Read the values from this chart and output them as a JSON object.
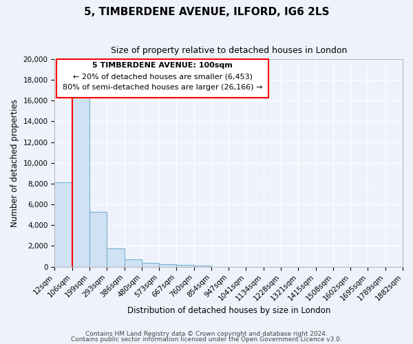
{
  "title": "5, TIMBERDENE AVENUE, ILFORD, IG6 2LS",
  "subtitle": "Size of property relative to detached houses in London",
  "xlabel": "Distribution of detached houses by size in London",
  "ylabel": "Number of detached properties",
  "bar_heights": [
    8100,
    16500,
    5300,
    1750,
    700,
    350,
    225,
    175,
    125,
    0,
    0,
    0,
    0,
    0,
    0,
    0,
    0,
    0,
    0,
    0
  ],
  "bin_labels": [
    "12sqm",
    "106sqm",
    "199sqm",
    "293sqm",
    "386sqm",
    "480sqm",
    "573sqm",
    "667sqm",
    "760sqm",
    "854sqm",
    "947sqm",
    "1041sqm",
    "1134sqm",
    "1228sqm",
    "1321sqm",
    "1415sqm",
    "1508sqm",
    "1602sqm",
    "1695sqm",
    "1789sqm",
    "1882sqm"
  ],
  "bar_color": "#cfe2f3",
  "bar_edge_color": "#7ab0d4",
  "red_line_x": 1,
  "annotation_text_line1": "5 TIMBERDENE AVENUE: 100sqm",
  "annotation_text_line2": "← 20% of detached houses are smaller (6,453)",
  "annotation_text_line3": "80% of semi-detached houses are larger (26,166) →",
  "footer_line1": "Contains HM Land Registry data © Crown copyright and database right 2024.",
  "footer_line2": "Contains public sector information licensed under the Open Government Licence v3.0.",
  "ylim": [
    0,
    20000
  ],
  "yticks": [
    0,
    2000,
    4000,
    6000,
    8000,
    10000,
    12000,
    14000,
    16000,
    18000,
    20000
  ],
  "background_color": "#eef2fa",
  "grid_color": "#ffffff",
  "title_fontsize": 11,
  "subtitle_fontsize": 9,
  "axis_label_fontsize": 8.5,
  "tick_fontsize": 7.5,
  "footer_fontsize": 6.5,
  "annotation_fontsize": 8
}
